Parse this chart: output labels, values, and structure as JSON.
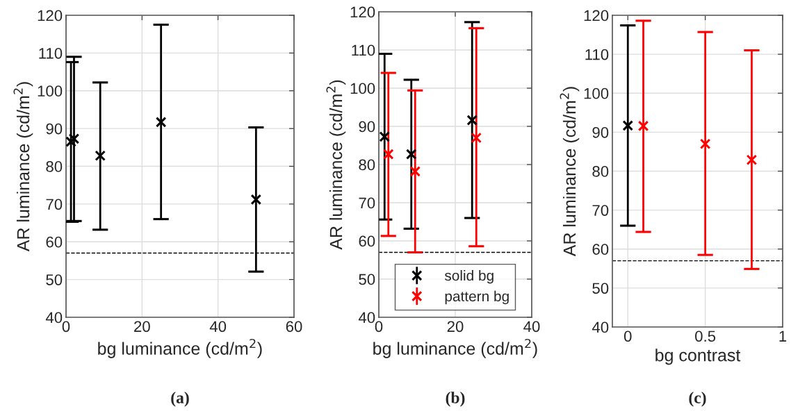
{
  "chart_data": [
    {
      "type": "scatter",
      "xlabel": "bg luminance (cd/m$^{2}$)",
      "ylabel": "AR luminance (cd/m$^{2}$)",
      "xlim": [
        0,
        60
      ],
      "xticks": [
        0,
        20,
        40,
        60
      ],
      "ylim": [
        40,
        120
      ],
      "yticks": [
        40,
        50,
        60,
        70,
        80,
        90,
        100,
        110,
        120
      ],
      "grid": true,
      "marker": "cross",
      "legend": false,
      "series": [
        {
          "color": "#000000",
          "x": [
            1.3,
            2.1,
            9,
            25,
            50
          ],
          "values": [
            86.5,
            87.3,
            82.8,
            91.7,
            71.2
          ],
          "errors": [
            [
              65.3,
              107.6
            ],
            [
              65.5,
              109.0
            ],
            [
              63.2,
              102.2
            ],
            [
              66.0,
              117.5
            ],
            [
              52.1,
              90.3
            ]
          ]
        }
      ],
      "ref_lines": [
        {
          "axis": "y",
          "value": 57,
          "color": "#000000",
          "line_style": "dashed"
        }
      ],
      "annotations": [
        "(a)"
      ]
    },
    {
      "type": "scatter",
      "xlabel": "bg luminance (cd/m$^{2}$)",
      "ylabel": "AR luminance (cd/m$^{2}$)",
      "xlim": [
        0,
        40
      ],
      "xticks": [
        0,
        20,
        40
      ],
      "ylim": [
        40,
        120
      ],
      "yticks": [
        40,
        50,
        60,
        70,
        80,
        90,
        100,
        110,
        120
      ],
      "grid": true,
      "marker": "cross",
      "legend": "bottom",
      "series": [
        {
          "name": "solid bg",
          "color": "#000000",
          "x": [
            1.5,
            8.5,
            24.4
          ],
          "values": [
            87.3,
            82.7,
            91.6
          ],
          "errors": [
            [
              65.6,
              109.0
            ],
            [
              63.2,
              102.2
            ],
            [
              66.0,
              117.3
            ]
          ]
        },
        {
          "name": "pattern bg",
          "color": "#ff0000",
          "x": [
            2.5,
            9.5,
            25.5
          ],
          "values": [
            82.7,
            78.2,
            87.0
          ],
          "errors": [
            [
              61.3,
              104.0
            ],
            [
              57.0,
              99.4
            ],
            [
              58.6,
              115.7
            ]
          ]
        }
      ],
      "ref_lines": [
        {
          "axis": "y",
          "value": 57,
          "color": "#000000",
          "line_style": "dashed"
        }
      ],
      "annotations": [
        "(b)"
      ]
    },
    {
      "type": "scatter",
      "xlabel": "bg contrast",
      "ylabel": "AR luminance (cd/m$^{2}$)",
      "xlim": [
        -0.1,
        1
      ],
      "xticks": [
        0,
        0.5,
        1
      ],
      "ylim": [
        40,
        120
      ],
      "yticks": [
        40,
        50,
        60,
        70,
        80,
        90,
        100,
        110,
        120
      ],
      "grid": true,
      "marker": "cross",
      "legend": false,
      "series": [
        {
          "color": "#000000",
          "x": [
            0
          ],
          "values": [
            91.7
          ],
          "errors": [
            [
              66.0,
              117.4
            ]
          ]
        },
        {
          "color": "#ff0000",
          "x": [
            0.1,
            0.5,
            0.8
          ],
          "values": [
            91.6,
            87.0,
            82.9
          ],
          "errors": [
            [
              64.4,
              118.6
            ],
            [
              58.5,
              115.7
            ],
            [
              54.9,
              111.0
            ]
          ]
        }
      ],
      "ref_lines": [
        {
          "axis": "y",
          "value": 57,
          "color": "#000000",
          "line_style": "dashed"
        }
      ],
      "annotations": [
        "(c)"
      ]
    }
  ]
}
